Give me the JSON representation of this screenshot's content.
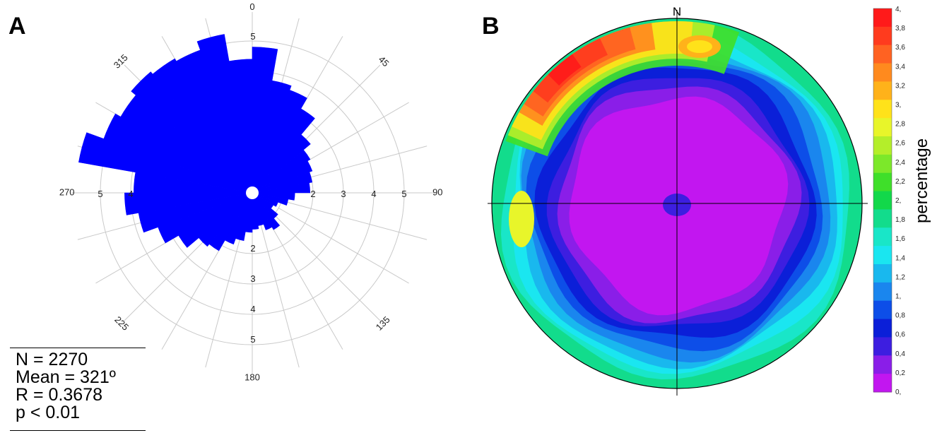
{
  "panel_a": {
    "letter": "A",
    "stats": [
      "N = 2270",
      "Mean = 321º",
      "R = 0.3678",
      "p < 0.01"
    ]
  },
  "panel_b": {
    "letter": "B",
    "north_label": "N",
    "colorbar_label": "percentage"
  },
  "chart_data": [
    {
      "type": "rose",
      "title": "",
      "bin_width_deg": 10,
      "radial_max": 5,
      "radial_ticks": [
        2,
        3,
        4,
        5
      ],
      "angle_labels": [
        "0",
        "45",
        "90",
        "135",
        "180",
        "225",
        "270",
        "315"
      ],
      "bar_color": "#0000ff",
      "bins": [
        {
          "dir": 5,
          "value": 4.8
        },
        {
          "dir": 15,
          "value": 3.75
        },
        {
          "dir": 25,
          "value": 3.6
        },
        {
          "dir": 35,
          "value": 3.2
        },
        {
          "dir": 45,
          "value": 2.5
        },
        {
          "dir": 55,
          "value": 2.2
        },
        {
          "dir": 65,
          "value": 2.1
        },
        {
          "dir": 75,
          "value": 2.0
        },
        {
          "dir": 85,
          "value": 1.9
        },
        {
          "dir": 95,
          "value": 1.4
        },
        {
          "dir": 105,
          "value": 1.2
        },
        {
          "dir": 115,
          "value": 0.9
        },
        {
          "dir": 125,
          "value": 0.8
        },
        {
          "dir": 135,
          "value": 1.1
        },
        {
          "dir": 145,
          "value": 1.4
        },
        {
          "dir": 155,
          "value": 1.3
        },
        {
          "dir": 165,
          "value": 1.1
        },
        {
          "dir": 175,
          "value": 1.2
        },
        {
          "dir": 185,
          "value": 1.3
        },
        {
          "dir": 195,
          "value": 1.6
        },
        {
          "dir": 205,
          "value": 1.8
        },
        {
          "dir": 215,
          "value": 2.2
        },
        {
          "dir": 225,
          "value": 2.3
        },
        {
          "dir": 235,
          "value": 2.8
        },
        {
          "dir": 245,
          "value": 3.3
        },
        {
          "dir": 255,
          "value": 3.8
        },
        {
          "dir": 265,
          "value": 4.2
        },
        {
          "dir": 275,
          "value": 3.9
        },
        {
          "dir": 285,
          "value": 5.8
        },
        {
          "dir": 295,
          "value": 5.2
        },
        {
          "dir": 305,
          "value": 5.0
        },
        {
          "dir": 315,
          "value": 5.2
        },
        {
          "dir": 325,
          "value": 5.1
        },
        {
          "dir": 335,
          "value": 5.0
        },
        {
          "dir": 345,
          "value": 5.3
        },
        {
          "dir": 355,
          "value": 4.4
        }
      ]
    },
    {
      "type": "heatmap",
      "title": "",
      "projection": "stereonet",
      "colorbar": {
        "label": "percentage",
        "tick_labels": [
          "4,",
          "3,8",
          "3,6",
          "3,4",
          "3,2",
          "3,",
          "2,8",
          "2,6",
          "2,4",
          "2,2",
          "2,",
          "1,8",
          "1,6",
          "1,4",
          "1,2",
          "1,",
          "0,8",
          "0,6",
          "0,4",
          "0,2",
          "0,"
        ],
        "colors": [
          "#ff1a1a",
          "#ff3b1e",
          "#ff6222",
          "#ff8a1e",
          "#ffb21a",
          "#ffe21a",
          "#e8f52a",
          "#b4ee2a",
          "#7ce82a",
          "#3fdf2a",
          "#12d84a",
          "#12dc8c",
          "#19e6c8",
          "#1ae6f0",
          "#19b8ee",
          "#1a86ee",
          "#0d4ee8",
          "#0b1fd8",
          "#3d1ee0",
          "#8a1ee8",
          "#c216f0"
        ]
      },
      "concentration_band": {
        "from_deg": 290,
        "to_deg": 20,
        "max_percent": 4.0,
        "peak_dir_deg": 320
      },
      "center_max_percent": 0.2
    }
  ]
}
